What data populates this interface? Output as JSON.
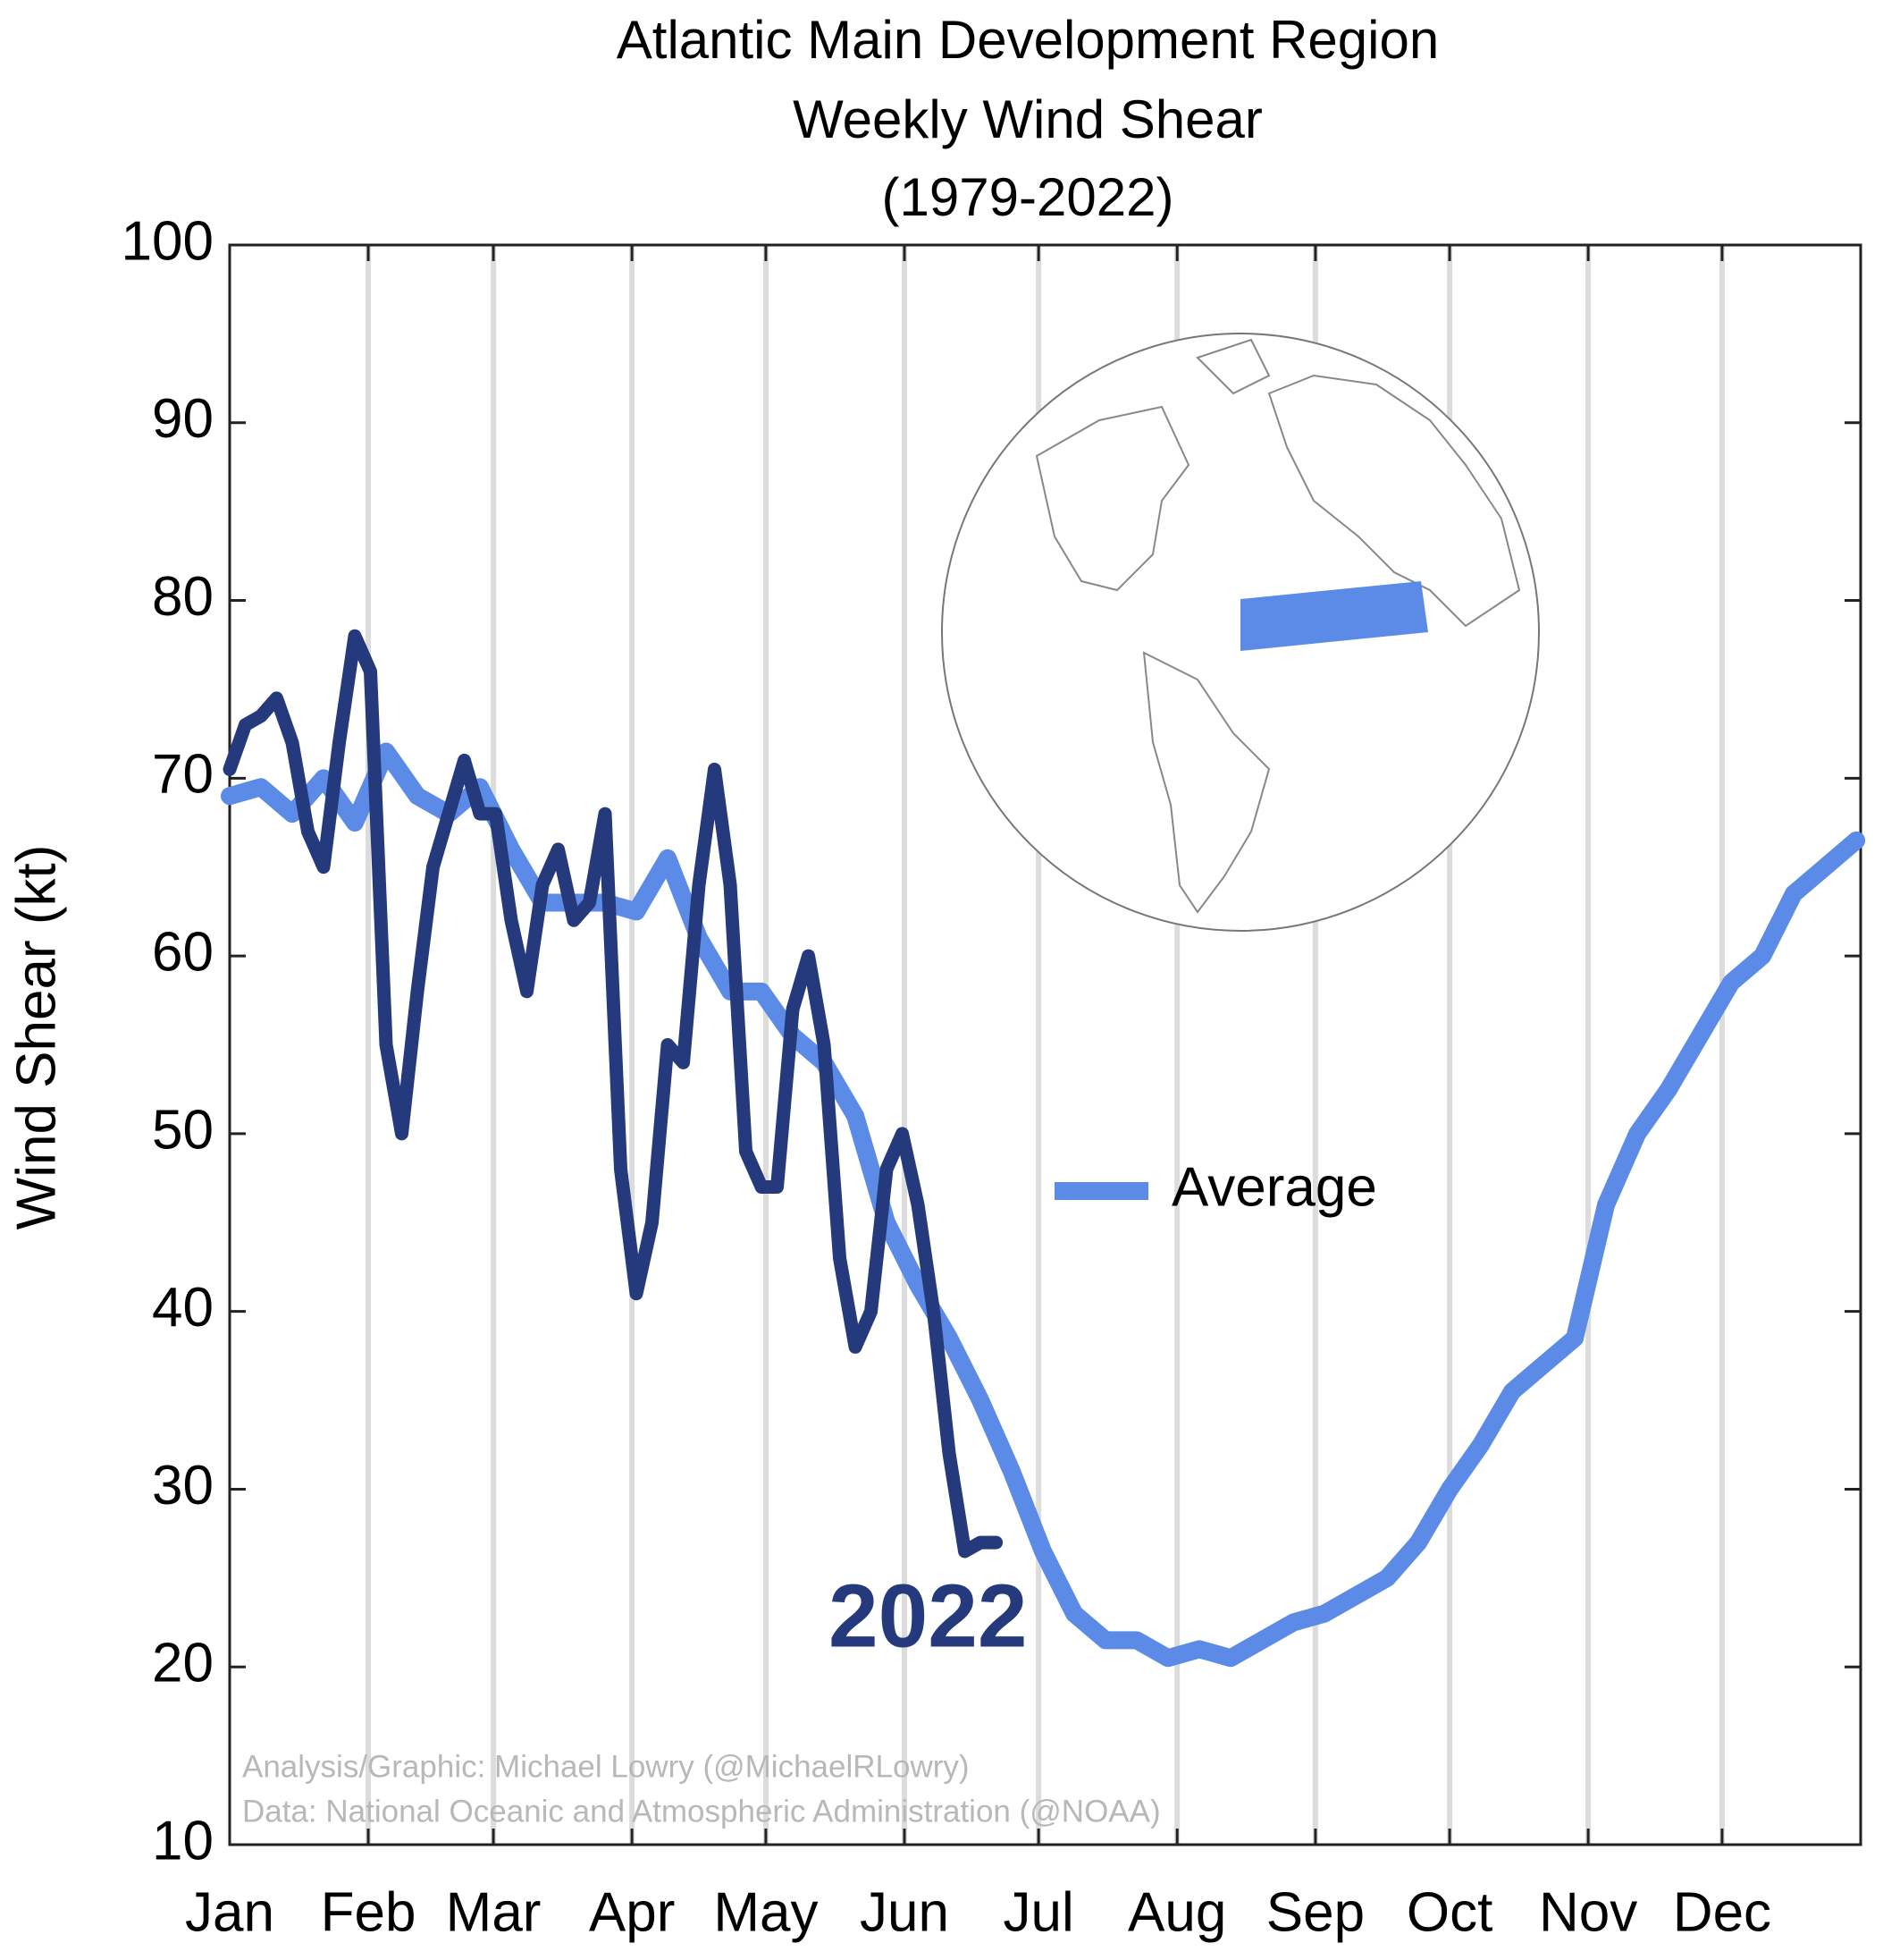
{
  "chart_data": {
    "type": "line",
    "title": [
      "Atlantic Main Development Region",
      "Weekly Wind Shear",
      "(1979-2022)"
    ],
    "ylabel": "Wind Shear (kt)",
    "annotations": [
      "Analysis/Graphic: Michael Lowry (@MichaelRLowry)",
      "Data: National Oceanic and Atmospheric Administration (@NOAA)"
    ],
    "xlim": [
      0,
      52.14
    ],
    "xticks": [
      {
        "value": 0,
        "label": "Jan"
      },
      {
        "value": 4.43,
        "label": "Feb"
      },
      {
        "value": 8.43,
        "label": "Mar"
      },
      {
        "value": 12.86,
        "label": "Apr"
      },
      {
        "value": 17.14,
        "label": "May"
      },
      {
        "value": 21.57,
        "label": "Jun"
      },
      {
        "value": 25.86,
        "label": "Jul"
      },
      {
        "value": 30.29,
        "label": "Aug"
      },
      {
        "value": 34.71,
        "label": "Sep"
      },
      {
        "value": 39,
        "label": "Oct"
      },
      {
        "value": 43.43,
        "label": "Nov"
      },
      {
        "value": 47.71,
        "label": "Dec"
      }
    ],
    "ylim": [
      10,
      100
    ],
    "yticks": [
      10,
      20,
      30,
      40,
      50,
      60,
      70,
      80,
      90,
      100
    ],
    "grid": true,
    "series": [
      {
        "name": "Average",
        "color": "#5b8be6",
        "x": [
          0,
          1,
          2,
          3,
          4,
          5,
          6,
          7,
          8,
          9,
          10,
          11,
          12,
          13,
          14,
          15,
          16,
          17,
          18,
          19,
          20,
          21,
          22,
          23,
          24,
          25,
          26,
          27,
          28,
          29,
          30,
          31,
          32,
          33,
          34,
          35,
          36,
          37,
          38,
          39,
          40,
          41,
          42,
          43,
          44,
          45,
          46,
          47,
          48,
          49,
          50,
          51,
          52
        ],
        "values": [
          69,
          69.5,
          68,
          70,
          67.5,
          71.5,
          69,
          68,
          69.5,
          66,
          63,
          63,
          63,
          62.5,
          65.5,
          61,
          58,
          58,
          55.5,
          54,
          51,
          45,
          41.5,
          38.5,
          35,
          31,
          26.5,
          23,
          21.5,
          21.5,
          20.5,
          21,
          20.5,
          21.5,
          22.5,
          23,
          24,
          25,
          27,
          30,
          32.5,
          35.5,
          37,
          38.5,
          46,
          50,
          52.5,
          55.5,
          58.5,
          60,
          63.5,
          65,
          66.5
        ]
      },
      {
        "name": "2022",
        "color": "#253a7c",
        "x": [
          0,
          0.5,
          1,
          1.5,
          2,
          2.5,
          3,
          3.5,
          4,
          4.5,
          5,
          5.5,
          6,
          6.5,
          7,
          7.5,
          8,
          8.5,
          9,
          9.5,
          10,
          10.5,
          11,
          11.5,
          12,
          12.5,
          13,
          13.5,
          14,
          14.5,
          15,
          15.5,
          16,
          16.5,
          17,
          17.5,
          18,
          18.5,
          19,
          19.5,
          20,
          20.5,
          21,
          21.5,
          22,
          22.5,
          23,
          23.5,
          24,
          24.5
        ],
        "values": [
          70.5,
          73,
          73.5,
          74.5,
          72,
          67,
          65,
          72,
          78,
          76,
          55,
          50,
          58,
          65,
          68,
          71,
          68,
          68,
          62,
          58,
          64,
          66,
          62,
          63,
          68,
          48,
          41,
          45,
          55,
          54,
          64,
          70.5,
          64,
          49,
          47,
          47,
          57,
          60,
          55,
          43,
          38,
          40,
          48,
          50,
          46,
          40,
          32,
          26.5,
          27,
          27
        ]
      }
    ]
  }
}
